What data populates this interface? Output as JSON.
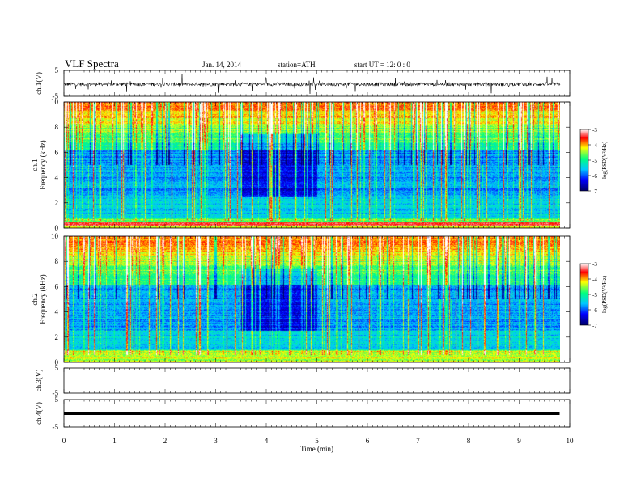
{
  "header": {
    "title": "VLF  Spectra",
    "date": "Jan. 14, 2014",
    "station": "station=ATH",
    "start": "start  UT  =    12: 0   : 0"
  },
  "colors": {
    "colormap": [
      "#000064",
      "#0000ff",
      "#00c8ff",
      "#00ff80",
      "#ffff00",
      "#ff0000",
      "#ffffff"
    ],
    "trace": "#000000"
  },
  "chart_data": [
    {
      "type": "line",
      "ylabel": "ch.1(V)",
      "ylim": [
        -5,
        5
      ],
      "yticks": [
        "5",
        "-5"
      ],
      "x_range_min": [
        0,
        9.8
      ],
      "description_series": "noisy waveform centred near 0"
    },
    {
      "type": "heatmap",
      "ylabel": "ch.1\nFrequency (kHz)",
      "ylim": [
        0,
        10
      ],
      "yticks": [
        "0",
        "2",
        "4",
        "6",
        "8",
        "10"
      ],
      "x_range_min": [
        0,
        9.8
      ],
      "colorbar": {
        "label": "log(PSD(V²/Hz)",
        "range": [
          -7,
          -3
        ],
        "ticks": [
          "-3",
          "-4",
          "-5",
          "-6",
          "-7"
        ]
      }
    },
    {
      "type": "heatmap",
      "ylabel": "ch.2\nFrequency (kHz)",
      "ylim": [
        0,
        10
      ],
      "yticks": [
        "0",
        "2",
        "4",
        "6",
        "8",
        "10"
      ],
      "x_range_min": [
        0,
        9.8
      ],
      "colorbar": {
        "label": "log(PSD(V²/Hz)",
        "range": [
          -7,
          -3
        ],
        "ticks": [
          "-3",
          "-4",
          "-5",
          "-6",
          "-7"
        ]
      }
    },
    {
      "type": "line",
      "ylabel": "ch.3(V)",
      "ylim": [
        -5,
        5
      ],
      "yticks": [
        "5",
        "-5"
      ],
      "value": -1
    },
    {
      "type": "line",
      "ylabel": "ch.4(V)",
      "ylim": [
        -5,
        5
      ],
      "yticks": [
        "5",
        "-5"
      ],
      "value": 0
    }
  ],
  "xaxis": {
    "label": "Time  (min)",
    "ticks": [
      "0",
      "1",
      "2",
      "3",
      "4",
      "5",
      "6",
      "7",
      "8",
      "9",
      "10"
    ],
    "range": [
      0,
      10
    ]
  }
}
